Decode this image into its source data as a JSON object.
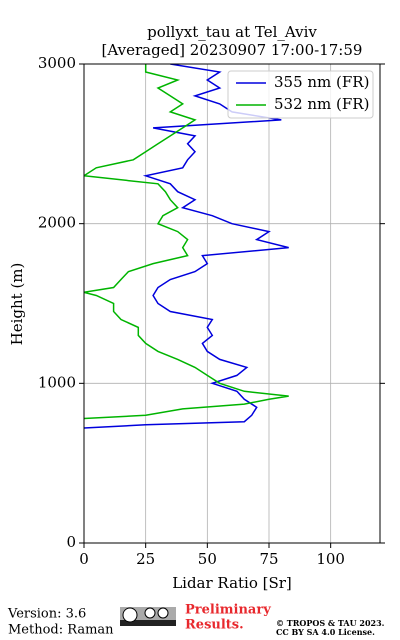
{
  "chart_data": {
    "type": "line",
    "title": "pollyxt_tau at Tel_Aviv",
    "subtitle": "[Averaged] 20230907 17:00-17:59",
    "xlabel": "Lidar Ratio [Sr]",
    "ylabel": "Height (m)",
    "xlim": [
      0,
      120
    ],
    "xticks": [
      0,
      25,
      50,
      75,
      100
    ],
    "ylim": [
      0,
      3000
    ],
    "yticks": [
      0,
      1000,
      2000,
      3000
    ],
    "grid": true,
    "legend": "upper right",
    "series": [
      {
        "name": "355 nm (FR)",
        "color": "#0000dd",
        "values": [
          720,
          740,
          760,
          800,
          850,
          900,
          950,
          1000,
          1050,
          1100,
          1150,
          1200,
          1250,
          1300,
          1350,
          1400,
          1450,
          1500,
          1550,
          1600,
          1650,
          1700,
          1750,
          1800,
          1850,
          1900,
          1950,
          2000,
          2050,
          2100,
          2150,
          2200,
          2250,
          2300,
          2350,
          2400,
          2450,
          2500,
          2550,
          2600,
          2650,
          2700,
          2750,
          2800,
          2850,
          2900,
          2950,
          3000
        ],
        "x": [
          0,
          25,
          65,
          68,
          70,
          65,
          62,
          52,
          62,
          66,
          55,
          50,
          48,
          52,
          50,
          52,
          35,
          30,
          28,
          30,
          35,
          45,
          50,
          48,
          83,
          70,
          75,
          60,
          52,
          40,
          45,
          38,
          35,
          25,
          40,
          42,
          45,
          42,
          45,
          28,
          80,
          60,
          55,
          45,
          55,
          50,
          55,
          35
        ]
      },
      {
        "name": "532 nm (FR)",
        "color": "#00b400",
        "values": [
          780,
          800,
          840,
          870,
          900,
          920,
          950,
          1000,
          1050,
          1100,
          1150,
          1200,
          1250,
          1300,
          1350,
          1400,
          1450,
          1500,
          1550,
          1570,
          1600,
          1650,
          1700,
          1750,
          1800,
          1850,
          1900,
          1950,
          2000,
          2050,
          2100,
          2150,
          2200,
          2250,
          2300,
          2350,
          2400,
          2450,
          2500,
          2550,
          2600,
          2650,
          2700,
          2750,
          2800,
          2850,
          2900,
          2950,
          3000
        ],
        "x": [
          0,
          25,
          40,
          65,
          75,
          83,
          65,
          55,
          50,
          45,
          38,
          30,
          25,
          22,
          22,
          15,
          12,
          12,
          5,
          0,
          12,
          15,
          18,
          28,
          42,
          40,
          42,
          38,
          30,
          32,
          38,
          35,
          33,
          30,
          0,
          5,
          20,
          25,
          30,
          35,
          40,
          45,
          35,
          40,
          35,
          30,
          38,
          25,
          25
        ]
      }
    ]
  },
  "footer": {
    "version": "Version: 3.6",
    "method": "Method: Raman",
    "status": [
      "Preliminary",
      "Results."
    ],
    "license": [
      "© TROPOS & TAU 2023.",
      "CC BY SA 4.0 License."
    ]
  }
}
